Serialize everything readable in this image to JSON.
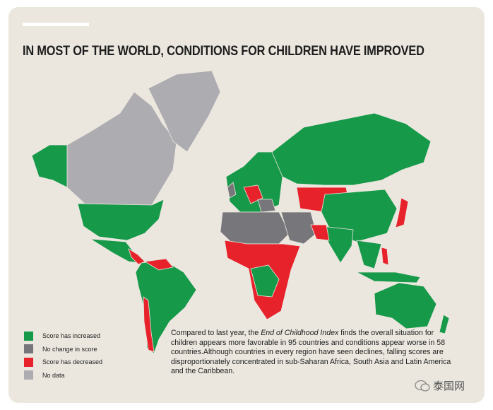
{
  "header": {
    "title": "IN MOST OF THE WORLD, CONDITIONS FOR CHILDREN HAVE IMPROVED"
  },
  "legend": [
    {
      "label": "Score has increased",
      "color": "#17994a"
    },
    {
      "label": "No change in score",
      "color": "#77777b"
    },
    {
      "label": "Score has decreased",
      "color": "#e8222b"
    },
    {
      "label": "No data",
      "color": "#adacb0"
    }
  ],
  "paragraph": [
    "Compared to last year, the ",
    "End of Childhood Index",
    " finds the overall situation for children appears more favorable in 95 countries and conditions appear worse in 58 countries.Although countries in every region have seen declines, falling scores are disproportionately concentrated in sub-Saharan Africa, South Asia and Latin America and the Caribbean."
  ],
  "watermark": "泰国网"
}
